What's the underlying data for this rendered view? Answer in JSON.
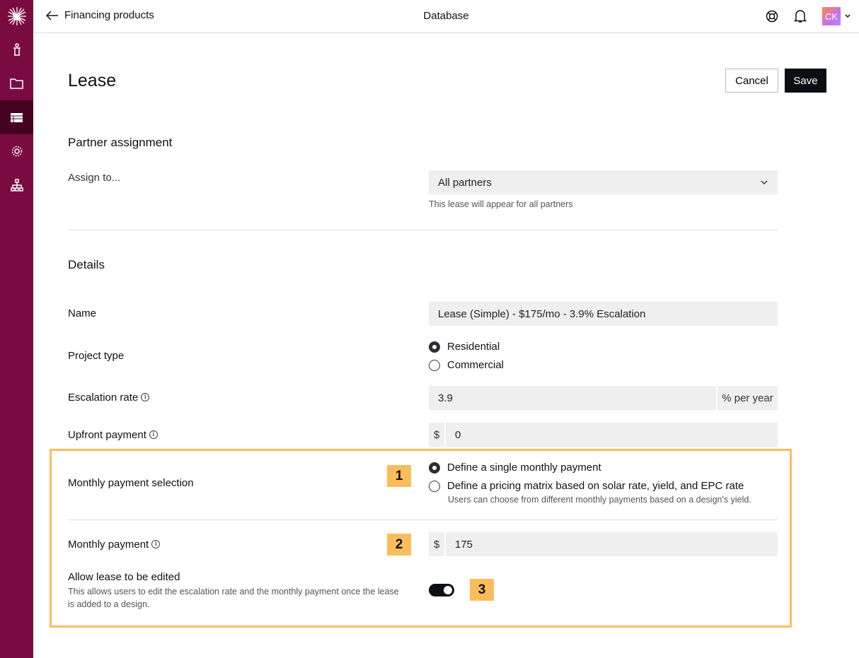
{
  "colors": {
    "sidebar": "#7a0b41",
    "sidebar_active": "#45021f",
    "highlight": "#fbbd5c",
    "primary_button": "#0b0f14"
  },
  "header": {
    "back_label": "Financing products",
    "title": "Database",
    "avatar_initials": "CK"
  },
  "sidebar": {
    "items": [
      {
        "icon": "logo-icon"
      },
      {
        "icon": "person-icon"
      },
      {
        "icon": "folder-icon"
      },
      {
        "icon": "database-icon",
        "active": true
      },
      {
        "icon": "gear-icon"
      },
      {
        "icon": "org-chart-icon"
      }
    ]
  },
  "page": {
    "title": "Lease",
    "cancel_label": "Cancel",
    "save_label": "Save"
  },
  "partner": {
    "heading": "Partner assignment",
    "assign_label": "Assign to...",
    "assign_value": "All partners",
    "assign_help": "This lease will appear for all partners"
  },
  "details": {
    "heading": "Details",
    "name_label": "Name",
    "name_value": "Lease (Simple) - $175/mo - 3.9% Escalation",
    "project_type_label": "Project type",
    "project_types": [
      "Residential",
      "Commercial"
    ],
    "project_type_selected": "Residential",
    "escalation_label": "Escalation rate",
    "escalation_value": "3.9",
    "escalation_unit": "% per year",
    "upfront_label": "Upfront payment",
    "upfront_prefix": "$",
    "upfront_value": "0",
    "monthly_selection_label": "Monthly payment selection",
    "monthly_options": [
      "Define a single monthly payment",
      "Define a pricing matrix based on solar rate, yield, and EPC rate"
    ],
    "monthly_option_selected": "Define a single monthly payment",
    "monthly_option_help": "Users can choose from different monthly payments based on a design's yield.",
    "monthly_payment_label": "Monthly payment",
    "monthly_prefix": "$",
    "monthly_value": "175",
    "allow_edit_label": "Allow lease to be edited",
    "allow_edit_help": "This allows users to edit the escalation rate and the monthly payment once the lease is added to a design.",
    "allow_edit_on": true
  },
  "badges": [
    "1",
    "2",
    "3"
  ]
}
